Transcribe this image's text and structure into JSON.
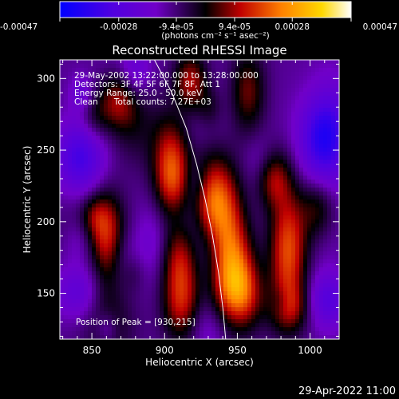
{
  "chart_data": {
    "type": "heatmap",
    "title": "Reconstructed RHESSI Image",
    "xlabel": "Heliocentric X (arcsec)",
    "ylabel": "Heliocentric Y (arcsec)",
    "xlim": [
      828,
      1020
    ],
    "ylim": [
      118,
      313
    ],
    "x_ticks": [
      850,
      900,
      950,
      1000
    ],
    "y_ticks": [
      150,
      200,
      250,
      300
    ],
    "colorbar": {
      "range": [
        -0.00047,
        0.00047
      ],
      "ticks": [
        -0.00047,
        -0.00028,
        -9.4e-05,
        9.4e-05,
        0.00028,
        0.00047
      ],
      "tick_labels": [
        "-0.00047",
        "-0.00028",
        "-9.4e-05",
        "9.4e-05",
        "0.00028",
        "0.00047"
      ],
      "unit_label": "(photons cm⁻² s⁻¹ asec⁻²)",
      "colormap": [
        "#0000ff",
        "#7000c8",
        "#000000",
        "#c00000",
        "#ff8000",
        "#ffd800",
        "#ffffff"
      ]
    },
    "annotations": {
      "line1": "29-May-2002 13:22:00.000 to 13:28:00.000",
      "line2": "Detectors: 3F 4F 5F 6F 7F 8F, Att 1",
      "line3": "Energy Range: 25.0 - 50.0 keV",
      "line4": "Clean      Total counts: 7.27E+03",
      "peak": "Position of Peak = [930,215]"
    },
    "limb_curve": {
      "color": "#ffffff",
      "points": [
        [
          893,
          313
        ],
        [
          905,
          290
        ],
        [
          915,
          265
        ],
        [
          922,
          240
        ],
        [
          928,
          215
        ],
        [
          933,
          190
        ],
        [
          937,
          165
        ],
        [
          940,
          140
        ],
        [
          942,
          118
        ]
      ]
    },
    "hotspots": [
      {
        "x": 933,
        "y": 212,
        "amp": 1.0,
        "sx": 12,
        "sy": 22
      },
      {
        "x": 945,
        "y": 175,
        "amp": 0.7,
        "sx": 10,
        "sy": 25
      },
      {
        "x": 952,
        "y": 150,
        "amp": 0.55,
        "sx": 10,
        "sy": 18
      },
      {
        "x": 905,
        "y": 235,
        "amp": 0.75,
        "sx": 9,
        "sy": 25
      },
      {
        "x": 910,
        "y": 175,
        "amp": 0.55,
        "sx": 9,
        "sy": 20
      },
      {
        "x": 912,
        "y": 140,
        "amp": 0.45,
        "sx": 9,
        "sy": 18
      },
      {
        "x": 860,
        "y": 185,
        "amp": 0.65,
        "sx": 8,
        "sy": 22
      },
      {
        "x": 868,
        "y": 285,
        "amp": 0.4,
        "sx": 9,
        "sy": 14
      },
      {
        "x": 985,
        "y": 180,
        "amp": 0.65,
        "sx": 9,
        "sy": 30
      },
      {
        "x": 975,
        "y": 230,
        "amp": 0.4,
        "sx": 8,
        "sy": 14
      },
      {
        "x": 957,
        "y": 290,
        "amp": 0.5,
        "sx": 9,
        "sy": 20
      },
      {
        "x": 918,
        "y": 298,
        "amp": 0.45,
        "sx": 8,
        "sy": 14
      },
      {
        "x": 985,
        "y": 140,
        "amp": 0.35,
        "sx": 10,
        "sy": 12
      },
      {
        "x": 1005,
        "y": 210,
        "amp": 0.3,
        "sx": 8,
        "sy": 15
      }
    ],
    "coldspots": [
      {
        "x": 1010,
        "y": 262,
        "amp": 0.65,
        "sx": 12,
        "sy": 25
      },
      {
        "x": 842,
        "y": 245,
        "amp": 0.45,
        "sx": 12,
        "sy": 18
      },
      {
        "x": 838,
        "y": 150,
        "amp": 0.35,
        "sx": 12,
        "sy": 14
      },
      {
        "x": 1012,
        "y": 145,
        "amp": 0.35,
        "sx": 10,
        "sy": 14
      }
    ]
  },
  "footer": {
    "timestamp": "29-Apr-2022 11:00"
  }
}
